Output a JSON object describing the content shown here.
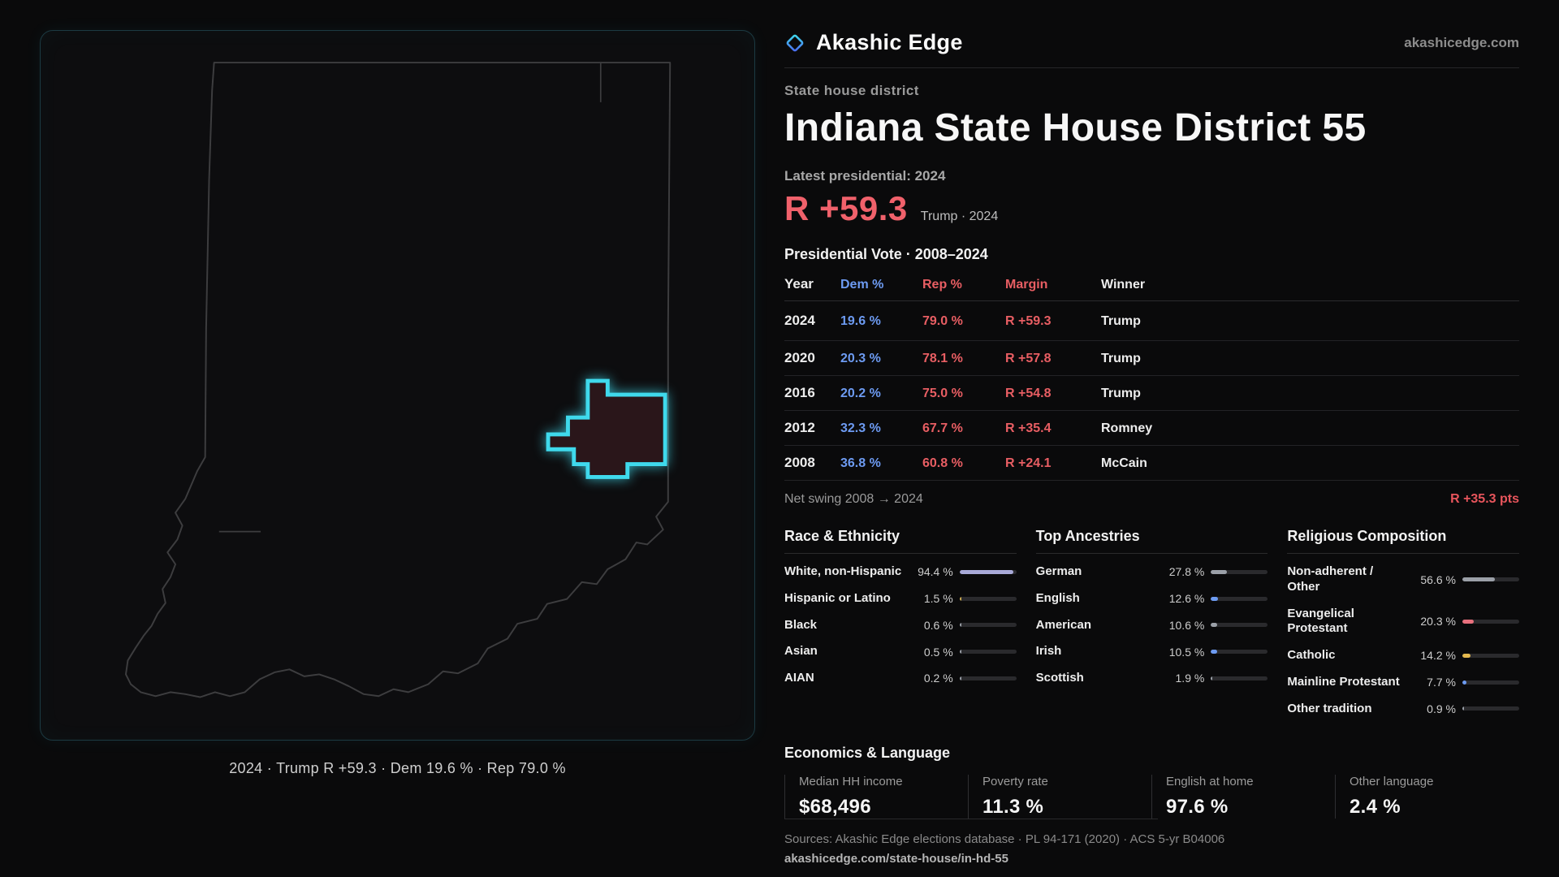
{
  "brand": {
    "name": "Akashic Edge",
    "site": "akashicedge.com"
  },
  "colors": {
    "accent_cyan": "#3fd9ec",
    "gop_red": "#f0616b",
    "dem_blue": "#6d9bf2"
  },
  "map": {
    "caption": "2024 · Trump R +59.3 · Dem 19.6 % · Rep 79.0 %"
  },
  "header": {
    "kicker": "State house district",
    "title": "Indiana State House District 55",
    "latest_label": "Latest presidential: 2024",
    "headline_margin": "R +59.3",
    "headline_sub": "Trump · 2024"
  },
  "presidential": {
    "title": "Presidential Vote · 2008–2024",
    "columns": {
      "year": "Year",
      "dem": "Dem %",
      "rep": "Rep %",
      "margin": "Margin",
      "winner": "Winner"
    },
    "rows": [
      {
        "year": "2024",
        "dem": "19.6 %",
        "rep": "79.0 %",
        "margin": "R +59.3",
        "winner": "Trump"
      },
      {
        "year": "2020",
        "dem": "20.3 %",
        "rep": "78.1 %",
        "margin": "R +57.8",
        "winner": "Trump"
      },
      {
        "year": "2016",
        "dem": "20.2 %",
        "rep": "75.0 %",
        "margin": "R +54.8",
        "winner": "Trump"
      },
      {
        "year": "2012",
        "dem": "32.3 %",
        "rep": "67.7 %",
        "margin": "R +35.4",
        "winner": "Romney"
      },
      {
        "year": "2008",
        "dem": "36.8 %",
        "rep": "60.8 %",
        "margin": "R +24.1",
        "winner": "McCain"
      }
    ],
    "net_swing_label": "Net swing 2008 → 2024",
    "net_swing_value": "R +35.3 pts"
  },
  "demographics": {
    "race": {
      "title": "Race & Ethnicity",
      "items": [
        {
          "label": "White, non-Hispanic",
          "value": "94.4 %",
          "pct": 94.4,
          "color": "#a8a9d8"
        },
        {
          "label": "Hispanic or Latino",
          "value": "1.5 %",
          "pct": 1.5,
          "color": "#cfae52"
        },
        {
          "label": "Black",
          "value": "0.6 %",
          "pct": 0.6,
          "color": "#9ba0a8"
        },
        {
          "label": "Asian",
          "value": "0.5 %",
          "pct": 0.5,
          "color": "#9ba0a8"
        },
        {
          "label": "AIAN",
          "value": "0.2 %",
          "pct": 0.2,
          "color": "#9ba0a8"
        }
      ]
    },
    "ancestries": {
      "title": "Top Ancestries",
      "items": [
        {
          "label": "German",
          "value": "27.8 %",
          "pct": 27.8,
          "color": "#9ba0a8"
        },
        {
          "label": "English",
          "value": "12.6 %",
          "pct": 12.6,
          "color": "#6d9bf2"
        },
        {
          "label": "American",
          "value": "10.6 %",
          "pct": 10.6,
          "color": "#9ba0a8"
        },
        {
          "label": "Irish",
          "value": "10.5 %",
          "pct": 10.5,
          "color": "#6d9bf2"
        },
        {
          "label": "Scottish",
          "value": "1.9 %",
          "pct": 1.9,
          "color": "#9ba0a8"
        }
      ]
    },
    "religion": {
      "title": "Religious Composition",
      "items": [
        {
          "label": "Non-adherent / Other",
          "value": "56.6 %",
          "pct": 56.6,
          "color": "#9ba0a8"
        },
        {
          "label": "Evangelical Protestant",
          "value": "20.3 %",
          "pct": 20.3,
          "color": "#e8707d"
        },
        {
          "label": "Catholic",
          "value": "14.2 %",
          "pct": 14.2,
          "color": "#e3b84e"
        },
        {
          "label": "Mainline Protestant",
          "value": "7.7 %",
          "pct": 7.7,
          "color": "#6d9bf2"
        },
        {
          "label": "Other tradition",
          "value": "0.9 %",
          "pct": 0.9,
          "color": "#9ba0a8"
        }
      ]
    }
  },
  "economics": {
    "title": "Economics & Language",
    "stats": [
      {
        "label": "Median HH income",
        "value": "$68,496"
      },
      {
        "label": "Poverty rate",
        "value": "11.3 %"
      },
      {
        "label": "English at home",
        "value": "97.6 %"
      },
      {
        "label": "Other language",
        "value": "2.4 %"
      }
    ]
  },
  "footer": {
    "sources": "Sources: Akashic Edge elections database · PL 94-171 (2020) · ACS 5-yr B04006",
    "permalink": "akashicedge.com/state-house/in-hd-55"
  },
  "chart_data": [
    {
      "type": "table",
      "title": "Presidential Vote · 2008–2024",
      "columns": [
        "Year",
        "Dem %",
        "Rep %",
        "Margin",
        "Winner"
      ],
      "rows": [
        [
          2024,
          19.6,
          79.0,
          "R +59.3",
          "Trump"
        ],
        [
          2020,
          20.3,
          78.1,
          "R +57.8",
          "Trump"
        ],
        [
          2016,
          20.2,
          75.0,
          "R +54.8",
          "Trump"
        ],
        [
          2012,
          32.3,
          67.7,
          "R +35.4",
          "Romney"
        ],
        [
          2008,
          36.8,
          60.8,
          "R +24.1",
          "McCain"
        ]
      ],
      "net_swing_2008_2024_pts": 35.3
    },
    {
      "type": "bar",
      "title": "Race & Ethnicity",
      "categories": [
        "White, non-Hispanic",
        "Hispanic or Latino",
        "Black",
        "Asian",
        "AIAN"
      ],
      "values": [
        94.4,
        1.5,
        0.6,
        0.5,
        0.2
      ],
      "unit": "%"
    },
    {
      "type": "bar",
      "title": "Top Ancestries",
      "categories": [
        "German",
        "English",
        "American",
        "Irish",
        "Scottish"
      ],
      "values": [
        27.8,
        12.6,
        10.6,
        10.5,
        1.9
      ],
      "unit": "%"
    },
    {
      "type": "bar",
      "title": "Religious Composition",
      "categories": [
        "Non-adherent / Other",
        "Evangelical Protestant",
        "Catholic",
        "Mainline Protestant",
        "Other tradition"
      ],
      "values": [
        56.6,
        20.3,
        14.2,
        7.7,
        0.9
      ],
      "unit": "%"
    }
  ]
}
